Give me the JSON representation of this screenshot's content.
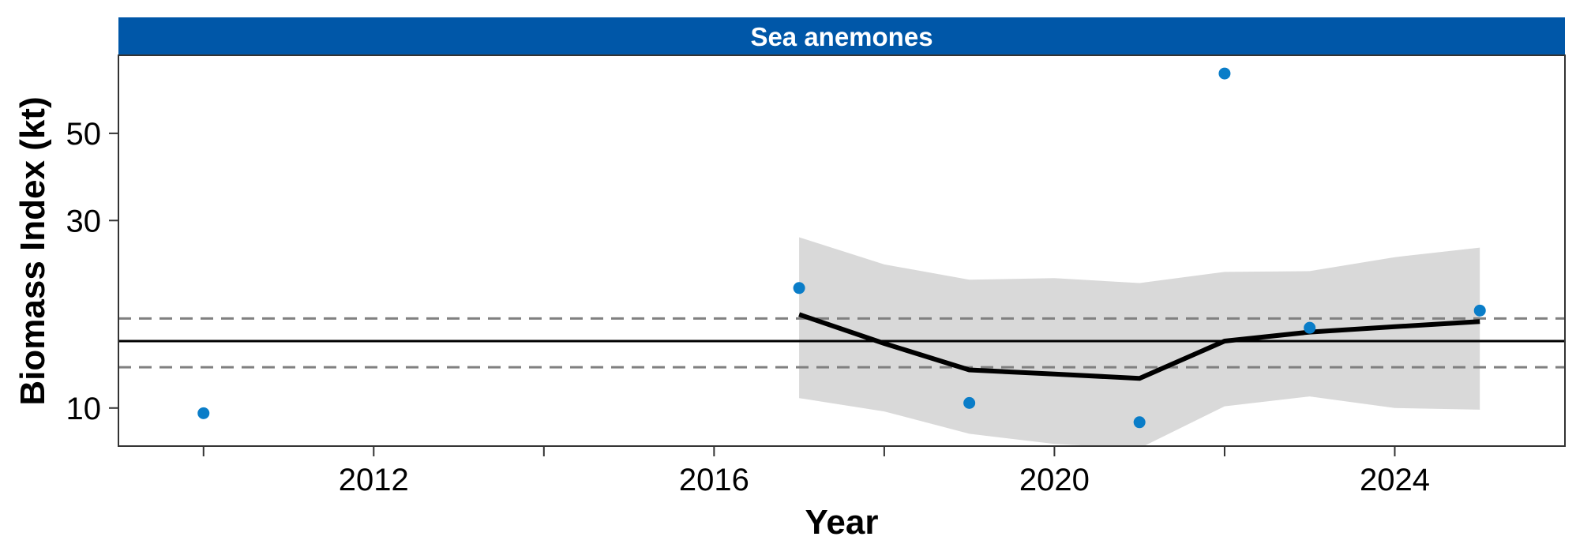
{
  "chart_data": {
    "type": "line",
    "panel_title": "Sea anemones",
    "xlabel": "Year",
    "ylabel": "Biomass Index (kt)",
    "y_scale": "log",
    "xlim": [
      2009.0,
      2026.0
    ],
    "ylim": [
      8.0,
      79.0
    ],
    "x_ticks": [
      2012,
      2016,
      2020,
      2024
    ],
    "x_minor_ticks": [
      2010,
      2014,
      2018,
      2022
    ],
    "y_ticks": [
      10,
      30,
      50
    ],
    "points": {
      "x": [
        2010,
        2017,
        2019,
        2021,
        2022,
        2023,
        2025
      ],
      "y": [
        9.7,
        20.2,
        10.3,
        9.2,
        71.0,
        16.0,
        17.7
      ]
    },
    "trend": {
      "x": [
        2017,
        2018,
        2019,
        2020,
        2021,
        2022,
        2023,
        2024,
        2025
      ],
      "y": [
        17.3,
        14.6,
        12.5,
        12.2,
        11.9,
        14.8,
        15.6,
        16.1,
        16.6
      ]
    },
    "band": {
      "x": [
        2017,
        2018,
        2019,
        2020,
        2021,
        2022,
        2023,
        2024,
        2025
      ],
      "lower": [
        10.6,
        9.8,
        8.6,
        8.1,
        7.9,
        10.1,
        10.7,
        10.0,
        9.9
      ],
      "upper": [
        27.2,
        23.2,
        21.2,
        21.4,
        20.8,
        22.2,
        22.3,
        24.2,
        25.6
      ]
    },
    "reference_line": 14.8,
    "reference_band": [
      12.7,
      16.9
    ],
    "grid": false,
    "legend": "none"
  },
  "colors": {
    "strip_background": "#0057A8",
    "points": "#0A7DC8",
    "trend": "#000000",
    "band": "#D9D9D9",
    "reference": "#000000",
    "reference_dashed": "#808080"
  }
}
